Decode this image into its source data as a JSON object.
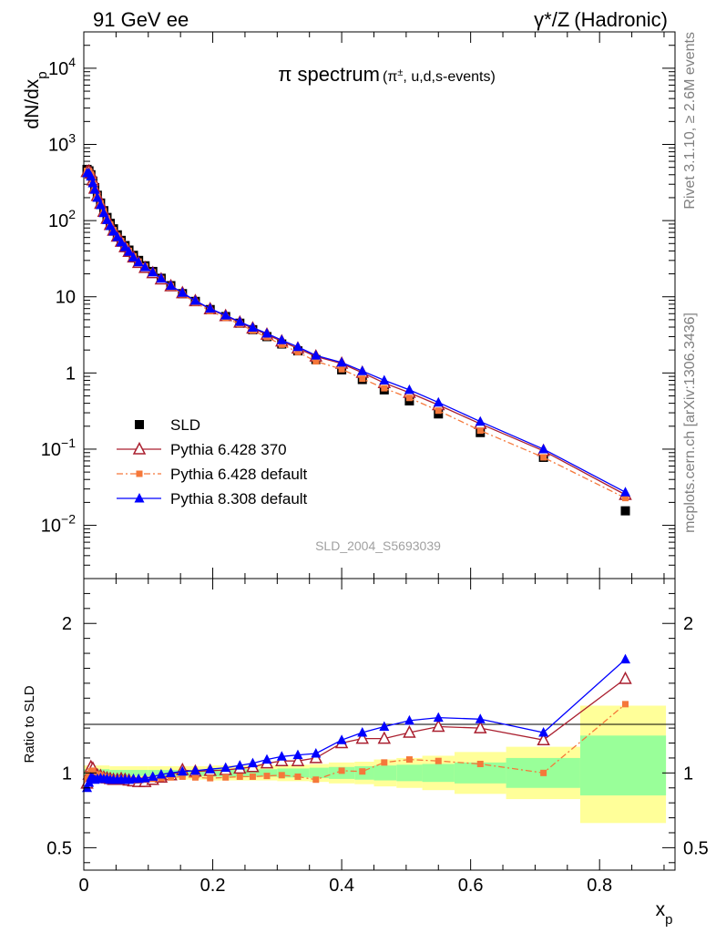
{
  "header": {
    "left": "91 GeV ee",
    "right_main": "γ*/Z",
    "right_paren": "(Hadronic)"
  },
  "side": {
    "rivet": "Rivet 3.1.10, ≥ 2.6M events",
    "source": "mcplots.cern.ch [arXiv:1306.3436]"
  },
  "chart_data": [
    {
      "type": "scatter",
      "panel": "main",
      "title_main": "π spectrum",
      "title_sub": "(π±, u,d,s-events)",
      "ylabel": "dN/dx_p",
      "yscale": "log",
      "ylim": [
        0.002,
        30000
      ],
      "xlim": [
        0,
        0.917
      ],
      "yticks": [
        {
          "v": 10000,
          "base": "10",
          "exp": "4"
        },
        {
          "v": 1000,
          "base": "10",
          "exp": "3"
        },
        {
          "v": 100,
          "base": "10",
          "exp": "2"
        },
        {
          "v": 10,
          "base": "10",
          "exp": ""
        },
        {
          "v": 1,
          "base": "1",
          "exp": ""
        },
        {
          "v": 0.1,
          "base": "10",
          "exp": "−1"
        },
        {
          "v": 0.01,
          "base": "10",
          "exp": "−2"
        }
      ],
      "watermark": "SLD_2004_S5693039",
      "x": [
        0.005,
        0.008,
        0.011,
        0.014,
        0.017,
        0.021,
        0.026,
        0.031,
        0.036,
        0.041,
        0.046,
        0.052,
        0.058,
        0.064,
        0.07,
        0.077,
        0.085,
        0.095,
        0.107,
        0.12,
        0.135,
        0.153,
        0.173,
        0.196,
        0.22,
        0.242,
        0.262,
        0.284,
        0.307,
        0.332,
        0.36,
        0.4,
        0.432,
        0.466,
        0.505,
        0.55,
        0.615,
        0.713,
        0.84
      ],
      "series": [
        {
          "name": "SLD",
          "color": "#000000",
          "marker": "square",
          "values": [
            470,
            450,
            400,
            330,
            270,
            215,
            170,
            135,
            110,
            92,
            78,
            65,
            55,
            47,
            41,
            35,
            30,
            25.5,
            21.5,
            17.5,
            14,
            11,
            8.7,
            6.8,
            5.5,
            4.5,
            3.7,
            3.0,
            2.4,
            1.95,
            1.5,
            1.1,
            0.82,
            0.6,
            0.43,
            0.29,
            0.165,
            0.078,
            0.0155
          ]
        },
        {
          "name": "Pythia 6.428 370",
          "color": "#aa1f2f",
          "marker": "open-triangle",
          "values": [
            437,
            445,
            417,
            339,
            264,
            212,
            167,
            131,
            106,
            88,
            74,
            62,
            53,
            45,
            39,
            33,
            28,
            24,
            20.5,
            17,
            13.8,
            11.2,
            8.8,
            6.9,
            5.6,
            4.6,
            3.85,
            3.2,
            2.6,
            2.1,
            1.65,
            1.33,
            1.01,
            0.74,
            0.55,
            0.38,
            0.215,
            0.095,
            0.0252
          ]
        },
        {
          "name": "Pythia 6.428 default",
          "color": "#f5783a",
          "marker": "square-small",
          "dash": "dashdot",
          "values": [
            450,
            445,
            405,
            335,
            268,
            213,
            168,
            132,
            107,
            89,
            75,
            63,
            54,
            46,
            40,
            34,
            29,
            25,
            21,
            17.2,
            13.8,
            10.8,
            8.4,
            6.5,
            5.3,
            4.36,
            3.6,
            2.95,
            2.35,
            1.88,
            1.42,
            1.12,
            0.84,
            0.63,
            0.47,
            0.32,
            0.175,
            0.078,
            0.0228
          ]
        },
        {
          "name": "Pythia 8.308 default",
          "color": "#0000ff",
          "marker": "triangle",
          "values": [
            420,
            420,
            380,
            310,
            255,
            200,
            160,
            126,
            102,
            85,
            72,
            61,
            52,
            45,
            39,
            33,
            28.5,
            24.5,
            21,
            17.4,
            14,
            11.3,
            8.9,
            7,
            5.7,
            4.7,
            3.95,
            3.3,
            2.7,
            2.2,
            1.7,
            1.37,
            1.06,
            0.8,
            0.6,
            0.41,
            0.23,
            0.1,
            0.0272
          ]
        }
      ],
      "legend_position": "lower-left"
    },
    {
      "type": "scatter",
      "panel": "ratio",
      "ylabel": "Ratio to SLD",
      "xlabel": "x_p",
      "ylim": [
        0.35,
        2.3
      ],
      "xlim": [
        0,
        0.917
      ],
      "yticks": [
        "0.5",
        "1",
        "2"
      ],
      "xticks": [
        "0",
        "0.2",
        "0.4",
        "0.6",
        "0.8"
      ],
      "bands": [
        [
          0.0,
          0.04,
          0.975,
          1.025,
          0.95,
          1.05
        ],
        [
          0.04,
          0.1,
          0.98,
          1.02,
          0.955,
          1.045
        ],
        [
          0.1,
          0.2,
          0.98,
          1.02,
          0.955,
          1.045
        ],
        [
          0.2,
          0.3,
          0.975,
          1.025,
          0.95,
          1.05
        ],
        [
          0.3,
          0.35,
          0.97,
          1.03,
          0.945,
          1.055
        ],
        [
          0.35,
          0.38,
          0.965,
          1.035,
          0.94,
          1.06
        ],
        [
          0.38,
          0.42,
          0.96,
          1.04,
          0.93,
          1.07
        ],
        [
          0.42,
          0.45,
          0.955,
          1.045,
          0.925,
          1.075
        ],
        [
          0.45,
          0.485,
          0.95,
          1.05,
          0.91,
          1.09
        ],
        [
          0.485,
          0.525,
          0.945,
          1.055,
          0.9,
          1.1
        ],
        [
          0.525,
          0.575,
          0.94,
          1.06,
          0.885,
          1.115
        ],
        [
          0.575,
          0.655,
          0.93,
          1.07,
          0.86,
          1.14
        ],
        [
          0.655,
          0.77,
          0.9,
          1.1,
          0.825,
          1.175
        ],
        [
          0.77,
          0.903,
          0.85,
          1.25,
          0.665,
          1.45
        ]
      ],
      "series": [
        {
          "name": "Pythia 6.428 370",
          "color": "#aa1f2f",
          "marker": "open-triangle",
          "values": [
            0.93,
            0.99,
            1.04,
            1.03,
            0.98,
            0.985,
            0.98,
            0.97,
            0.965,
            0.96,
            0.955,
            0.955,
            0.96,
            0.955,
            0.95,
            0.945,
            0.94,
            0.94,
            0.955,
            0.97,
            0.985,
            1.02,
            1.01,
            1.015,
            1.02,
            1.03,
            1.04,
            1.065,
            1.08,
            1.08,
            1.1,
            1.2,
            1.23,
            1.23,
            1.27,
            1.31,
            1.3,
            1.22,
            1.63
          ]
        },
        {
          "name": "Pythia 6.428 default",
          "color": "#f5783a",
          "marker": "square-small",
          "dash": "dashdot",
          "values": [
            0.96,
            0.99,
            1.01,
            1.015,
            0.99,
            0.99,
            0.985,
            0.975,
            0.97,
            0.965,
            0.96,
            0.96,
            0.96,
            0.96,
            0.955,
            0.95,
            0.95,
            0.955,
            0.96,
            0.965,
            0.97,
            0.975,
            0.97,
            0.965,
            0.97,
            0.975,
            0.975,
            0.98,
            0.985,
            0.975,
            0.955,
            1.015,
            1.01,
            1.07,
            1.09,
            1.08,
            1.06,
            1.0,
            1.46
          ]
        },
        {
          "name": "Pythia 8.308 default",
          "color": "#0000ff",
          "marker": "triangle",
          "values": [
            0.9,
            0.935,
            0.97,
            0.965,
            0.955,
            0.96,
            0.965,
            0.96,
            0.96,
            0.955,
            0.955,
            0.955,
            0.955,
            0.955,
            0.955,
            0.96,
            0.96,
            0.965,
            0.975,
            0.99,
            1.0,
            1.01,
            1.015,
            1.025,
            1.035,
            1.05,
            1.065,
            1.09,
            1.11,
            1.12,
            1.13,
            1.22,
            1.27,
            1.31,
            1.35,
            1.37,
            1.36,
            1.27,
            1.76
          ]
        }
      ]
    }
  ]
}
